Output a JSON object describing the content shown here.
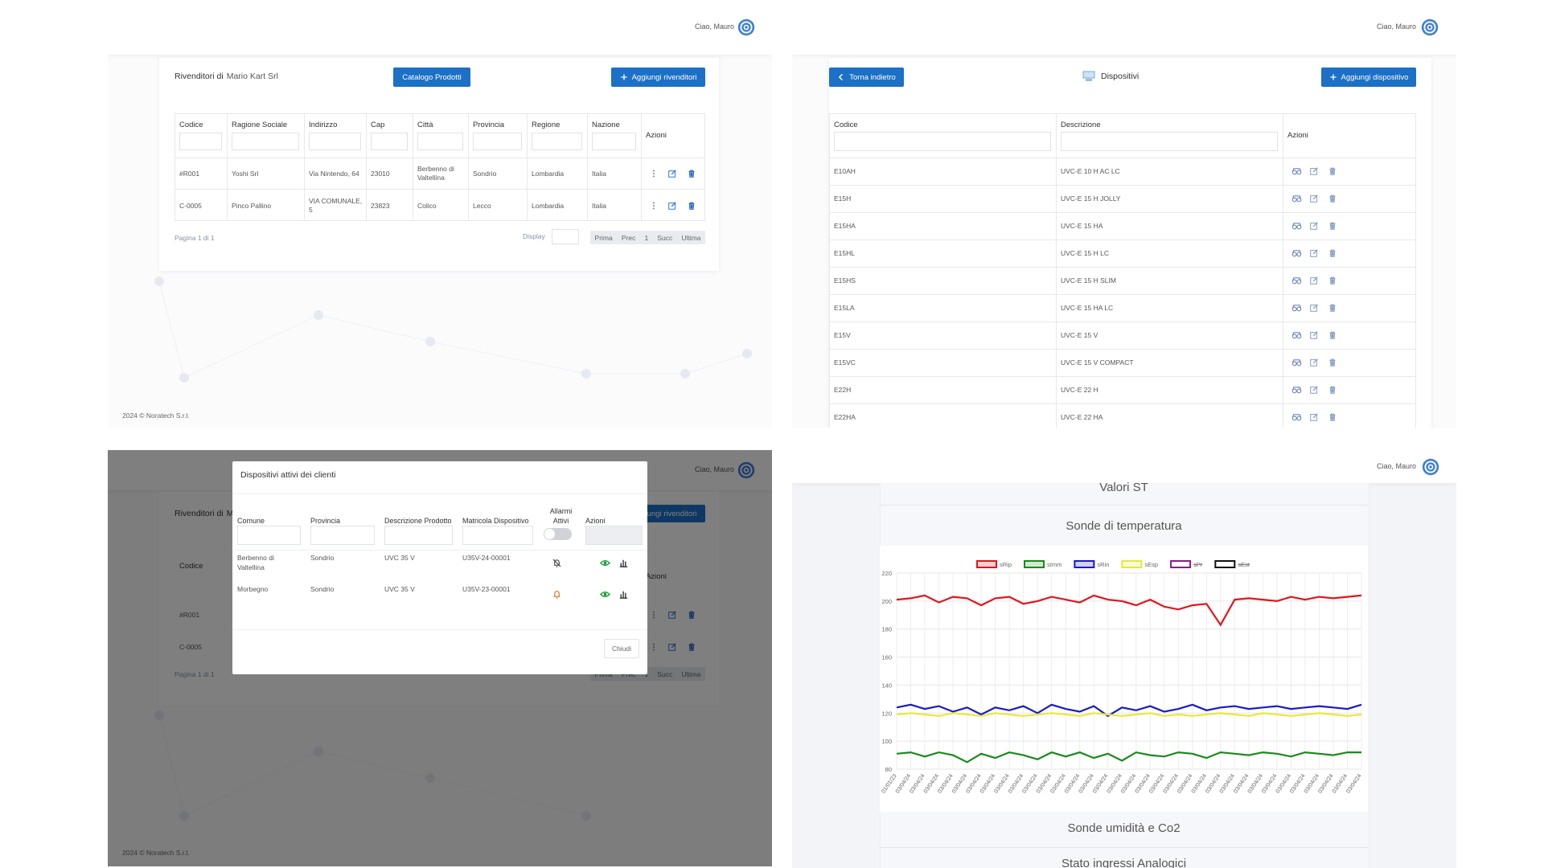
{
  "resellers": {
    "greeting": "Ciao, Mauro",
    "title_prefix": "Rivenditori di",
    "title_name": "Mario Kart Srl",
    "catalog_button": "Catalogo Prodotti",
    "add_button": "Aggiungi rivenditori",
    "columns": [
      "Codice",
      "Ragione Sociale",
      "Indirizzo",
      "Cap",
      "Città",
      "Provincia",
      "Regione",
      "Nazione",
      "Azioni"
    ],
    "rows": [
      [
        "#R001",
        "Yoshi Srl",
        "Via Nintendo, 64",
        "23010",
        "Berbenno di Valtellina",
        "Sondrio",
        "Lombardia",
        "Italia"
      ],
      [
        "C-0005",
        "Pinco Pallino",
        "VIA COMUNALE, 5",
        "23823",
        "Colico",
        "Lecco",
        "Lombardia",
        "Italia"
      ]
    ],
    "page_info": "Pagina 1 di 1",
    "display_label": "Display",
    "pager": [
      "Prima",
      "Prec",
      "1",
      "Succ",
      "Ultima"
    ],
    "footer": "2024 © Noratech S.r.l."
  },
  "devices": {
    "greeting": "Ciao, Mauro",
    "back_button": "Torna indietro",
    "title": "Dispositivi",
    "add_button": "Aggiungi dispositivo",
    "columns": [
      "Codice",
      "Descrizione",
      "Azioni"
    ],
    "rows": [
      [
        "E10AH",
        "UVC-E 10 H AC LC"
      ],
      [
        "E15H",
        "UVC-E 15 H JOLLY"
      ],
      [
        "E15HA",
        "UVC-E 15 HA"
      ],
      [
        "E15HL",
        "UVC-E 15 H LC"
      ],
      [
        "E15HS",
        "UVC-E 15 H SLIM"
      ],
      [
        "E15LA",
        "UVC-E 15 HA LC"
      ],
      [
        "E15V",
        "UVC-E 15 V"
      ],
      [
        "E15VC",
        "UVC-E 15 V COMPACT"
      ],
      [
        "E22H",
        "UVC-E 22 H"
      ],
      [
        "E22HA",
        "UVC-E 22 HA"
      ]
    ]
  },
  "modal": {
    "title": "Dispositivi attivi dei clienti",
    "columns": [
      "Comune",
      "Provincia",
      "Descrizione Prodotto",
      "Matricola Dispositivo",
      "Allarmi Attivi",
      "Azioni"
    ],
    "rows": [
      [
        "Berbenno di Valtellina",
        "Sondrio",
        "UVC 35 V",
        "U35V-24-00001"
      ],
      [
        "Morbegno",
        "Sondrio",
        "UVC 35 V",
        "U35V-23-00001"
      ]
    ],
    "close_button": "Chiudi"
  },
  "stats": {
    "greeting": "Ciao, Mauro",
    "heading": "Valori ST",
    "section_temperature": "Sonde di temperatura",
    "section_humidity": "Sonde umidità e Co2",
    "section_analog": "Stato ingressi Analogici",
    "chart": {
      "type": "line",
      "categories": [
        "01/01/23",
        "03/04/24",
        "03/04/24",
        "03/04/24",
        "03/04/24",
        "03/04/24",
        "03/04/24",
        "03/04/24",
        "03/04/24",
        "03/04/24",
        "03/04/24",
        "03/04/24",
        "03/04/24",
        "03/04/24",
        "03/04/24",
        "03/04/24",
        "03/04/24",
        "03/04/24",
        "03/04/24",
        "03/04/24",
        "03/04/24",
        "03/04/24",
        "03/04/24",
        "03/04/24",
        "03/04/24",
        "03/04/24",
        "03/04/24",
        "03/04/24",
        "03/04/24",
        "03/04/24",
        "03/04/24",
        "03/04/24",
        "03/04/24",
        "03/04/24"
      ],
      "ylim": [
        80,
        220
      ],
      "yticks": [
        80,
        100,
        120,
        140,
        160,
        180,
        200,
        220
      ],
      "grid": true,
      "legend": "top",
      "series": [
        {
          "name": "sRip",
          "color": "#e0161c",
          "values": [
            201,
            202,
            204,
            199,
            203,
            202,
            197,
            202,
            203,
            198,
            200,
            203,
            201,
            199,
            204,
            201,
            200,
            197,
            201,
            196,
            194,
            197,
            198,
            183,
            201,
            202,
            201,
            200,
            203,
            201,
            203,
            202,
            203,
            204
          ]
        },
        {
          "name": "sImm",
          "color": "#1a8a1a",
          "values": [
            91,
            92,
            89,
            92,
            90,
            85,
            91,
            88,
            92,
            90,
            87,
            92,
            89,
            92,
            88,
            91,
            86,
            92,
            90,
            89,
            92,
            91,
            88,
            92,
            91,
            90,
            92,
            91,
            89,
            92,
            91,
            90,
            92,
            92
          ]
        },
        {
          "name": "sRin",
          "color": "#1a1ac8",
          "values": [
            124,
            126,
            123,
            125,
            121,
            124,
            119,
            124,
            122,
            125,
            120,
            126,
            123,
            121,
            125,
            118,
            124,
            122,
            125,
            121,
            123,
            126,
            122,
            124,
            125,
            123,
            124,
            125,
            123,
            124,
            125,
            124,
            123,
            126
          ]
        },
        {
          "name": "sEsp",
          "color": "#e8e83a",
          "values": [
            119,
            120,
            119,
            118,
            120,
            119,
            118,
            120,
            119,
            118,
            119,
            120,
            119,
            118,
            120,
            119,
            118,
            119,
            120,
            118,
            119,
            118,
            119,
            120,
            119,
            118,
            120,
            119,
            118,
            119,
            120,
            119,
            118,
            119
          ]
        },
        {
          "name": "sPr",
          "color": "#8a1a8a",
          "hidden": true
        },
        {
          "name": "sEst",
          "color": "#111111",
          "hidden": true
        }
      ]
    }
  }
}
